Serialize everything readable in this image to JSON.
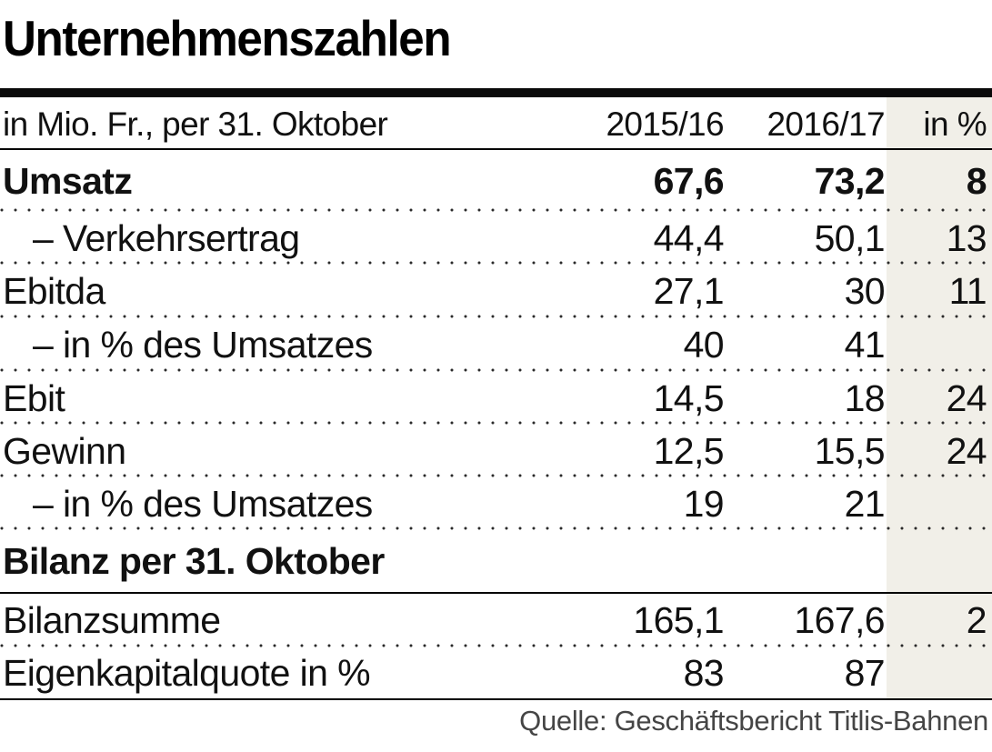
{
  "title": "Unternehmenszahlen",
  "table": {
    "header": {
      "label": "in Mio. Fr., per 31. Oktober",
      "col1": "2015/16",
      "col2": "2016/17",
      "col3": "in %"
    },
    "rows": [
      {
        "label": "Umsatz",
        "v1": "67,6",
        "v2": "73,2",
        "pct": "8"
      },
      {
        "label": "– Verkehrsertrag",
        "v1": "44,4",
        "v2": "50,1",
        "pct": "13"
      },
      {
        "label": "Ebitda",
        "v1": "27,1",
        "v2": "30",
        "pct": "11"
      },
      {
        "label": "– in % des Umsatzes",
        "v1": "40",
        "v2": "41",
        "pct": ""
      },
      {
        "label": "Ebit",
        "v1": "14,5",
        "v2": "18",
        "pct": "24"
      },
      {
        "label": "Gewinn",
        "v1": "12,5",
        "v2": "15,5",
        "pct": "24"
      },
      {
        "label": "– in % des Umsatzes",
        "v1": "19",
        "v2": "21",
        "pct": ""
      },
      {
        "label": "Bilanz per 31. Oktober"
      },
      {
        "label": "Bilanzsumme",
        "v1": "165,1",
        "v2": "167,6",
        "pct": "2"
      },
      {
        "label": "Eigenkapitalquote in %",
        "v1": "83",
        "v2": "87",
        "pct": ""
      }
    ]
  },
  "source": "Quelle: Geschäftsbericht Titlis-Bahnen",
  "colors": {
    "percent_column_bg": "#f1efe8",
    "rule": "#000000",
    "text": "#111111",
    "source_text": "#454545"
  },
  "chart_data": {
    "type": "table",
    "title": "Unternehmenszahlen",
    "unit_note": "in Mio. Fr., per 31. Oktober",
    "columns": [
      "in Mio. Fr., per 31. Oktober",
      "2015/16",
      "2016/17",
      "in %"
    ],
    "rows": [
      [
        "Umsatz",
        67.6,
        73.2,
        8
      ],
      [
        "– Verkehrsertrag",
        44.4,
        50.1,
        13
      ],
      [
        "Ebitda",
        27.1,
        30,
        11
      ],
      [
        "– in % des Umsatzes",
        40,
        41,
        null
      ],
      [
        "Ebit",
        14.5,
        18,
        24
      ],
      [
        "Gewinn",
        12.5,
        15.5,
        24
      ],
      [
        "– in % des Umsatzes",
        19,
        21,
        null
      ],
      [
        "Bilanz per 31. Oktober",
        null,
        null,
        null
      ],
      [
        "Bilanzsumme",
        165.1,
        167.6,
        2
      ],
      [
        "Eigenkapitalquote in %",
        83,
        87,
        null
      ]
    ],
    "source": "Quelle: Geschäftsbericht Titlis-Bahnen",
    "layout": {
      "highlighted_column": "in %",
      "row_separator": "dotted",
      "section_rows": [
        7
      ]
    }
  }
}
